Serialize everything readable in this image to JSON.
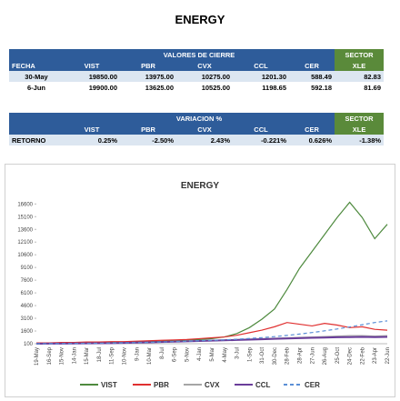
{
  "title": "ENERGY",
  "table1": {
    "group": "VALORES DE CIERRE",
    "sector": "SECTOR",
    "columns": [
      "FECHA",
      "VIST",
      "PBR",
      "CVX",
      "CCL",
      "CER",
      "XLE"
    ],
    "rows": [
      [
        "30-May",
        "19850.00",
        "13975.00",
        "10275.00",
        "1201.30",
        "588.49",
        "82.83"
      ],
      [
        "6-Jun",
        "19900.00",
        "13625.00",
        "10525.00",
        "1198.65",
        "592.18",
        "81.69"
      ]
    ]
  },
  "table2": {
    "group": "VARIACION %",
    "sector": "SECTOR",
    "columns": [
      "VIST",
      "PBR",
      "CVX",
      "CCL",
      "CER",
      "XLE"
    ],
    "rows": [
      [
        "RETORNO",
        "0.25%",
        "-2.50%",
        "2.43%",
        "-0.221%",
        "0.626%",
        "-1.38%"
      ]
    ]
  },
  "chart_data": {
    "type": "line",
    "title": "ENERGY",
    "categories": [
      "19-May",
      "16-Sep",
      "15-Nov",
      "14-Jan",
      "15-Mar",
      "18-Jul",
      "11-Sep",
      "10-Nov",
      "9-Jan",
      "10-Mar",
      "8-Jul",
      "6-Sep",
      "5-Nov",
      "4-Jan",
      "5-Mar",
      "4-May",
      "3-Jul",
      "1-Sep",
      "31-Oct",
      "30-Dec",
      "28-Feb",
      "28-Apr",
      "27-Jun",
      "26-Aug",
      "25-Oct",
      "24-Dec",
      "22-Feb",
      "23-Apr",
      "22-Jun"
    ],
    "ylim": [
      100,
      17600
    ],
    "yticks": [
      100,
      1600,
      3100,
      4600,
      6100,
      7600,
      9100,
      10600,
      12100,
      13600,
      15100,
      16600
    ],
    "series": [
      {
        "name": "VIST",
        "color": "#4e8a3e",
        "values": [
          200,
          150,
          150,
          150,
          180,
          200,
          250,
          250,
          300,
          350,
          400,
          500,
          550,
          600,
          700,
          900,
          1300,
          2000,
          3000,
          4200,
          6500,
          9000,
          11000,
          13000,
          15000,
          16800,
          15000,
          12500,
          14200
        ]
      },
      {
        "name": "PBR",
        "color": "#e03030",
        "values": [
          200,
          200,
          250,
          250,
          300,
          300,
          350,
          350,
          400,
          450,
          500,
          550,
          600,
          700,
          800,
          900,
          1100,
          1400,
          1700,
          2100,
          2600,
          2400,
          2200,
          2500,
          2300,
          2000,
          2100,
          1800,
          1700
        ]
      },
      {
        "name": "CVX",
        "color": "#a6a6a6",
        "values": [
          100,
          100,
          120,
          150,
          150,
          180,
          200,
          220,
          250,
          280,
          300,
          350,
          400,
          450,
          500,
          550,
          600,
          650,
          700,
          750,
          800,
          850,
          900,
          950,
          1000,
          1050,
          1050,
          1000,
          1050
        ]
      },
      {
        "name": "CCL",
        "color": "#6a3d9a",
        "values": [
          100,
          110,
          120,
          130,
          140,
          150,
          170,
          200,
          230,
          260,
          300,
          340,
          380,
          420,
          460,
          500,
          540,
          580,
          620,
          680,
          720,
          760,
          800,
          830,
          860,
          880,
          900,
          880,
          900
        ]
      },
      {
        "name": "CER",
        "color": "#5b8fd6",
        "dashed": true,
        "values": [
          100,
          110,
          120,
          130,
          140,
          160,
          180,
          200,
          230,
          260,
          300,
          350,
          400,
          450,
          500,
          560,
          630,
          720,
          820,
          940,
          1080,
          1240,
          1420,
          1620,
          1840,
          2080,
          2340,
          2600,
          2800
        ]
      }
    ]
  }
}
